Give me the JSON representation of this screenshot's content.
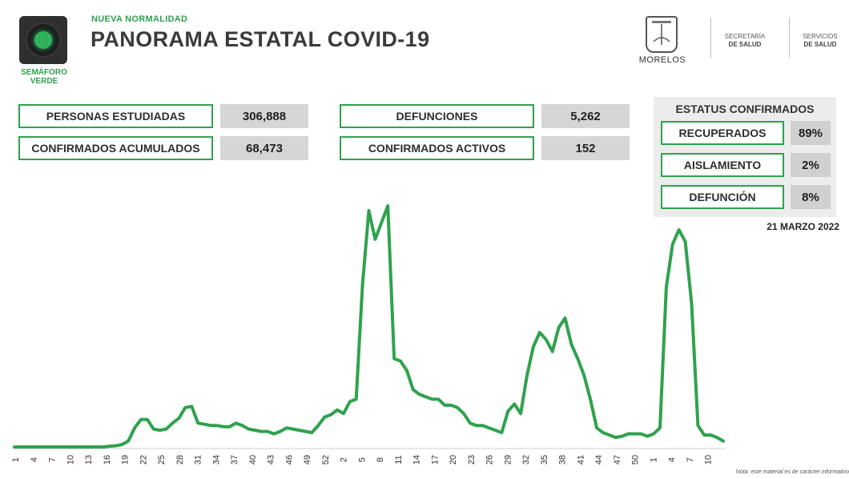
{
  "header": {
    "tagline": "NUEVA NORMALIDAD",
    "title": "PANORAMA ESTATAL COVID-19",
    "semaforo_label_line1": "SEMÁFORO",
    "semaforo_label_line2": "VERDE",
    "state_logo_text": "MORELOS",
    "org1_line1": "SECRETARÍA",
    "org1_line2": "DE SALUD",
    "org2_line1": "SERVICIOS",
    "org2_line2": "DE SALUD",
    "colors": {
      "accent": "#2fa24d",
      "title": "#3b3b3b"
    }
  },
  "stats": [
    {
      "label": "PERSONAS ESTUDIADAS",
      "value": "306,888"
    },
    {
      "label": "CONFIRMADOS ACUMULADOS",
      "value": "68,473"
    },
    {
      "label": "DEFUNCIONES",
      "value": "5,262"
    },
    {
      "label": "CONFIRMADOS ACTIVOS",
      "value": "152"
    }
  ],
  "status": {
    "title": "ESTATUS CONFIRMADOS",
    "items": [
      {
        "label": "RECUPERADOS",
        "value": "89%"
      },
      {
        "label": "AISLAMIENTO",
        "value": "2%"
      },
      {
        "label": "DEFUNCIÓN",
        "value": "8%"
      }
    ]
  },
  "date": "21 MARZO 2022",
  "note": "Nota: este material es de carácter informativo",
  "chart_data": {
    "type": "line",
    "title": "",
    "xlabel": "",
    "ylabel": "",
    "color": "#2fa24d",
    "grid": false,
    "tick_labels": [
      "1",
      "4",
      "7",
      "10",
      "13",
      "16",
      "19",
      "22",
      "25",
      "28",
      "31",
      "34",
      "37",
      "40",
      "43",
      "46",
      "49",
      "52",
      "2",
      "5",
      "8",
      "11",
      "14",
      "17",
      "20",
      "23",
      "26",
      "29",
      "32",
      "35",
      "38",
      "41",
      "44",
      "47",
      "50",
      "1",
      "4",
      "7",
      "10"
    ],
    "ylim": [
      0,
      100
    ],
    "values": [
      0,
      0,
      0,
      0,
      0,
      0,
      0,
      0,
      0,
      0,
      0,
      0,
      0,
      0,
      0,
      0.3,
      0.5,
      1,
      2.5,
      8,
      11.5,
      11.5,
      7.5,
      7,
      7.5,
      10,
      12,
      16.5,
      17,
      10,
      9.5,
      9,
      9,
      8.5,
      8.5,
      10,
      9,
      7.5,
      7,
      6.5,
      6.5,
      5.5,
      6.5,
      8,
      7.5,
      7,
      6.5,
      6,
      9,
      12.5,
      13.5,
      15.5,
      14,
      19,
      20,
      68,
      99,
      87,
      94,
      101,
      37,
      36,
      32,
      24,
      22,
      21,
      20,
      20,
      17.5,
      17.5,
      16.5,
      14,
      10,
      9,
      9,
      8,
      7,
      6,
      15,
      18,
      14,
      30,
      42,
      48,
      45,
      40,
      50,
      54,
      43,
      37,
      30,
      20,
      8,
      6,
      5,
      4,
      4.5,
      5.5,
      5.5,
      5.5,
      4.5,
      5.5,
      8,
      67,
      85,
      91,
      86,
      60,
      9,
      5,
      5,
      4,
      2.5
    ]
  }
}
